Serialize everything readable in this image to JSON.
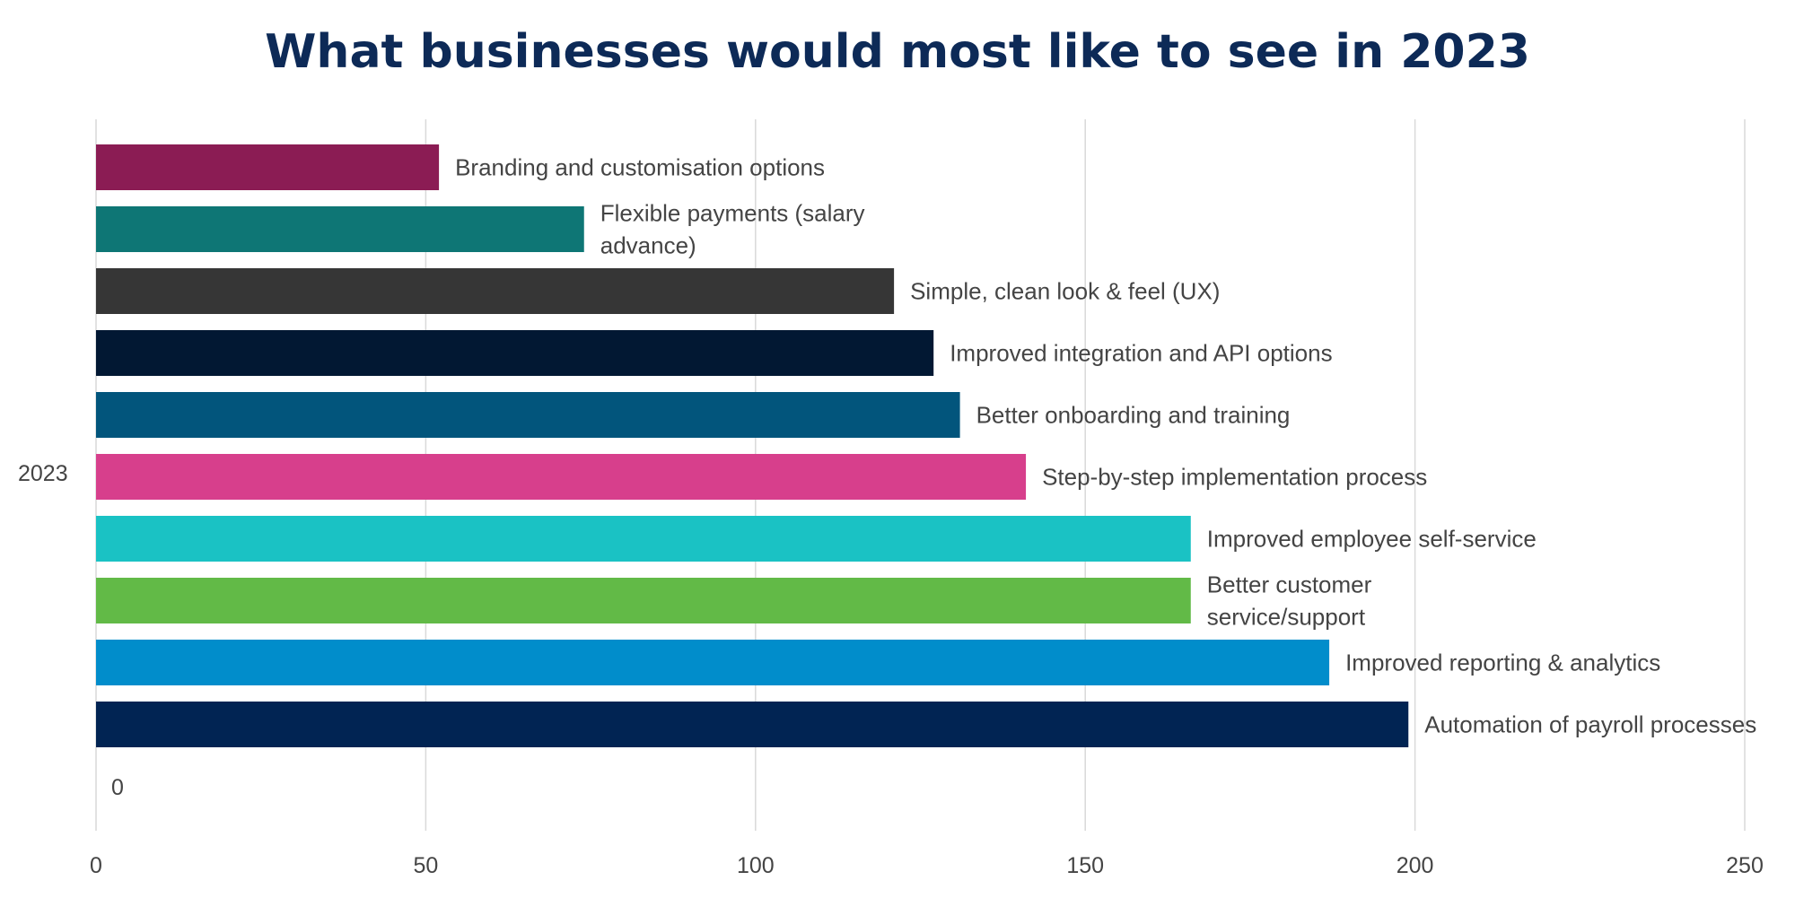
{
  "chart_data": {
    "type": "bar",
    "orientation": "horizontal",
    "title": "What businesses would most like to see in 2023",
    "category_label": "2023",
    "xlim": [
      0,
      250
    ],
    "x_ticks": [
      0,
      50,
      100,
      150,
      200,
      250
    ],
    "grid": true,
    "zero_label": "0",
    "series": [
      {
        "label": "Branding and customisation options",
        "value": 52,
        "color": "#8b1c54"
      },
      {
        "label": "Flexible payments (salary advance)",
        "value": 74,
        "color": "#0e7675"
      },
      {
        "label": "Simple, clean look & feel (UX)",
        "value": 121,
        "color": "#363636"
      },
      {
        "label": "Improved integration and API options",
        "value": 127,
        "color": "#021833"
      },
      {
        "label": "Better onboarding and training",
        "value": 131,
        "color": "#02557c"
      },
      {
        "label": "Step-by-step implementation process",
        "value": 141,
        "color": "#d73f8c"
      },
      {
        "label": "Improved employee self-service",
        "value": 166,
        "color": "#1ac2c4"
      },
      {
        "label": "Better customer service/support",
        "value": 166,
        "color": "#62ba47"
      },
      {
        "label": "Improved reporting & analytics",
        "value": 187,
        "color": "#018dcb"
      },
      {
        "label": "Automation of payroll processes",
        "value": 199,
        "color": "#012453"
      }
    ]
  }
}
